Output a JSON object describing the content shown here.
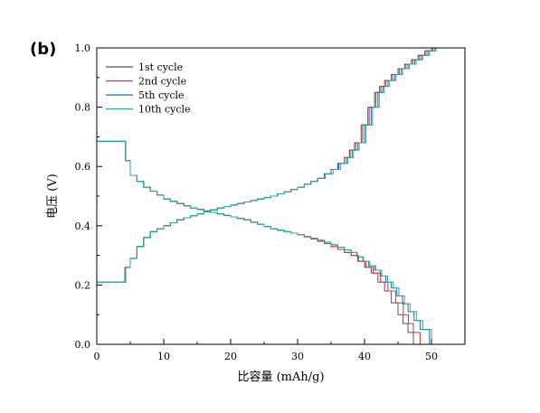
{
  "chart_data": {
    "type": "line",
    "panel_label": "(b)",
    "xlabel": "比容量 (mAh/g)",
    "ylabel": "电压 (V)",
    "xlim": [
      0,
      55
    ],
    "ylim": [
      0,
      1.0
    ],
    "x_ticks": [
      "0",
      "10",
      "20",
      "30",
      "40",
      "50"
    ],
    "y_ticks": [
      "0.0",
      "0.2",
      "0.4",
      "0.6",
      "0.8",
      "1.0"
    ],
    "grid": false,
    "legend_position": "top-left",
    "series": [
      {
        "name": "1st cycle",
        "color": "#555555",
        "charge": [
          [
            0,
            0.21
          ],
          [
            3.9,
            0.21
          ],
          [
            4.2,
            0.26
          ],
          [
            5,
            0.29
          ],
          [
            6,
            0.33
          ],
          [
            7,
            0.36
          ],
          [
            8,
            0.38
          ],
          [
            10,
            0.4
          ],
          [
            12,
            0.42
          ],
          [
            15,
            0.44
          ],
          [
            18,
            0.46
          ],
          [
            22,
            0.48
          ],
          [
            26,
            0.5
          ],
          [
            30,
            0.53
          ],
          [
            33,
            0.56
          ],
          [
            35,
            0.59
          ],
          [
            37,
            0.63
          ],
          [
            38.5,
            0.68
          ],
          [
            39.5,
            0.74
          ],
          [
            40.5,
            0.8
          ],
          [
            41.5,
            0.85
          ],
          [
            43,
            0.89
          ],
          [
            45,
            0.93
          ],
          [
            47,
            0.96
          ],
          [
            49,
            0.99
          ],
          [
            50,
            1.0
          ]
        ],
        "discharge": [
          [
            0,
            0.685
          ],
          [
            3.9,
            0.685
          ],
          [
            4.3,
            0.62
          ],
          [
            5,
            0.57
          ],
          [
            7,
            0.53
          ],
          [
            10,
            0.49
          ],
          [
            14,
            0.46
          ],
          [
            18,
            0.44
          ],
          [
            22,
            0.42
          ],
          [
            26,
            0.39
          ],
          [
            30,
            0.37
          ],
          [
            34,
            0.34
          ],
          [
            38,
            0.3
          ],
          [
            41,
            0.24
          ],
          [
            43,
            0.18
          ],
          [
            45,
            0.1
          ],
          [
            46.5,
            0.04
          ],
          [
            47.3,
            0.0
          ]
        ]
      },
      {
        "name": "2nd cycle",
        "color": "#d9312a",
        "charge": [
          [
            0,
            0.21
          ],
          [
            3.9,
            0.21
          ],
          [
            4.3,
            0.26
          ],
          [
            5,
            0.29
          ],
          [
            6,
            0.33
          ],
          [
            7,
            0.36
          ],
          [
            8,
            0.38
          ],
          [
            10,
            0.4
          ],
          [
            12,
            0.42
          ],
          [
            15,
            0.44
          ],
          [
            18,
            0.46
          ],
          [
            22,
            0.48
          ],
          [
            26,
            0.5
          ],
          [
            30,
            0.53
          ],
          [
            33,
            0.56
          ],
          [
            35,
            0.59
          ],
          [
            37,
            0.63
          ],
          [
            38.7,
            0.68
          ],
          [
            39.7,
            0.74
          ],
          [
            40.7,
            0.8
          ],
          [
            41.7,
            0.85
          ],
          [
            43.2,
            0.89
          ],
          [
            45.2,
            0.93
          ],
          [
            47.2,
            0.96
          ],
          [
            49.2,
            0.99
          ],
          [
            50.2,
            1.0
          ]
        ],
        "discharge": [
          [
            0,
            0.685
          ],
          [
            3.9,
            0.685
          ],
          [
            4.3,
            0.62
          ],
          [
            5,
            0.57
          ],
          [
            7,
            0.53
          ],
          [
            10,
            0.49
          ],
          [
            14,
            0.46
          ],
          [
            18,
            0.44
          ],
          [
            22,
            0.42
          ],
          [
            26,
            0.39
          ],
          [
            30,
            0.37
          ],
          [
            34,
            0.34
          ],
          [
            38,
            0.3
          ],
          [
            41.3,
            0.24
          ],
          [
            43.5,
            0.18
          ],
          [
            45.8,
            0.1
          ],
          [
            47.3,
            0.04
          ],
          [
            48.3,
            0.0
          ]
        ]
      },
      {
        "name": "5th cycle",
        "color": "#1f6fb5",
        "charge": [
          [
            0,
            0.21
          ],
          [
            3.9,
            0.21
          ],
          [
            4.3,
            0.26
          ],
          [
            5,
            0.29
          ],
          [
            6,
            0.33
          ],
          [
            7,
            0.36
          ],
          [
            8,
            0.38
          ],
          [
            10,
            0.4
          ],
          [
            12,
            0.42
          ],
          [
            15,
            0.44
          ],
          [
            18,
            0.46
          ],
          [
            22,
            0.48
          ],
          [
            26,
            0.5
          ],
          [
            30,
            0.53
          ],
          [
            33,
            0.56
          ],
          [
            35,
            0.59
          ],
          [
            37.3,
            0.63
          ],
          [
            39,
            0.68
          ],
          [
            40,
            0.74
          ],
          [
            41,
            0.8
          ],
          [
            42,
            0.85
          ],
          [
            43.5,
            0.89
          ],
          [
            45.5,
            0.93
          ],
          [
            47.5,
            0.96
          ],
          [
            49.5,
            0.99
          ],
          [
            50.5,
            1.0
          ]
        ],
        "discharge": [
          [
            0,
            0.685
          ],
          [
            3.9,
            0.685
          ],
          [
            4.3,
            0.62
          ],
          [
            5,
            0.57
          ],
          [
            7,
            0.53
          ],
          [
            10,
            0.49
          ],
          [
            14,
            0.46
          ],
          [
            18,
            0.44
          ],
          [
            22,
            0.42
          ],
          [
            26,
            0.39
          ],
          [
            30,
            0.37
          ],
          [
            34,
            0.345
          ],
          [
            38,
            0.31
          ],
          [
            41.5,
            0.25
          ],
          [
            44,
            0.19
          ],
          [
            46.5,
            0.11
          ],
          [
            48.3,
            0.05
          ],
          [
            49.7,
            0.0
          ]
        ]
      },
      {
        "name": "10th cycle",
        "color": "#2aa89a",
        "charge": [
          [
            0,
            0.21
          ],
          [
            3.9,
            0.21
          ],
          [
            4.3,
            0.26
          ],
          [
            5,
            0.29
          ],
          [
            6,
            0.33
          ],
          [
            7,
            0.36
          ],
          [
            8,
            0.38
          ],
          [
            10,
            0.4
          ],
          [
            12,
            0.42
          ],
          [
            15,
            0.44
          ],
          [
            18,
            0.46
          ],
          [
            22,
            0.48
          ],
          [
            26,
            0.5
          ],
          [
            30,
            0.53
          ],
          [
            33,
            0.56
          ],
          [
            35.3,
            0.59
          ],
          [
            37.5,
            0.63
          ],
          [
            39.2,
            0.68
          ],
          [
            40.2,
            0.74
          ],
          [
            41.2,
            0.8
          ],
          [
            42.2,
            0.85
          ],
          [
            43.7,
            0.89
          ],
          [
            45.7,
            0.93
          ],
          [
            47.7,
            0.96
          ],
          [
            49.7,
            0.99
          ],
          [
            50.7,
            1.0
          ]
        ],
        "discharge": [
          [
            0,
            0.685
          ],
          [
            3.9,
            0.685
          ],
          [
            4.3,
            0.62
          ],
          [
            5,
            0.57
          ],
          [
            7,
            0.53
          ],
          [
            10,
            0.49
          ],
          [
            14,
            0.46
          ],
          [
            18,
            0.44
          ],
          [
            22,
            0.42
          ],
          [
            26,
            0.39
          ],
          [
            30,
            0.37
          ],
          [
            34,
            0.345
          ],
          [
            38,
            0.31
          ],
          [
            41.7,
            0.25
          ],
          [
            44.3,
            0.19
          ],
          [
            46.8,
            0.11
          ],
          [
            48.7,
            0.05
          ],
          [
            50,
            0.0
          ]
        ]
      }
    ]
  }
}
